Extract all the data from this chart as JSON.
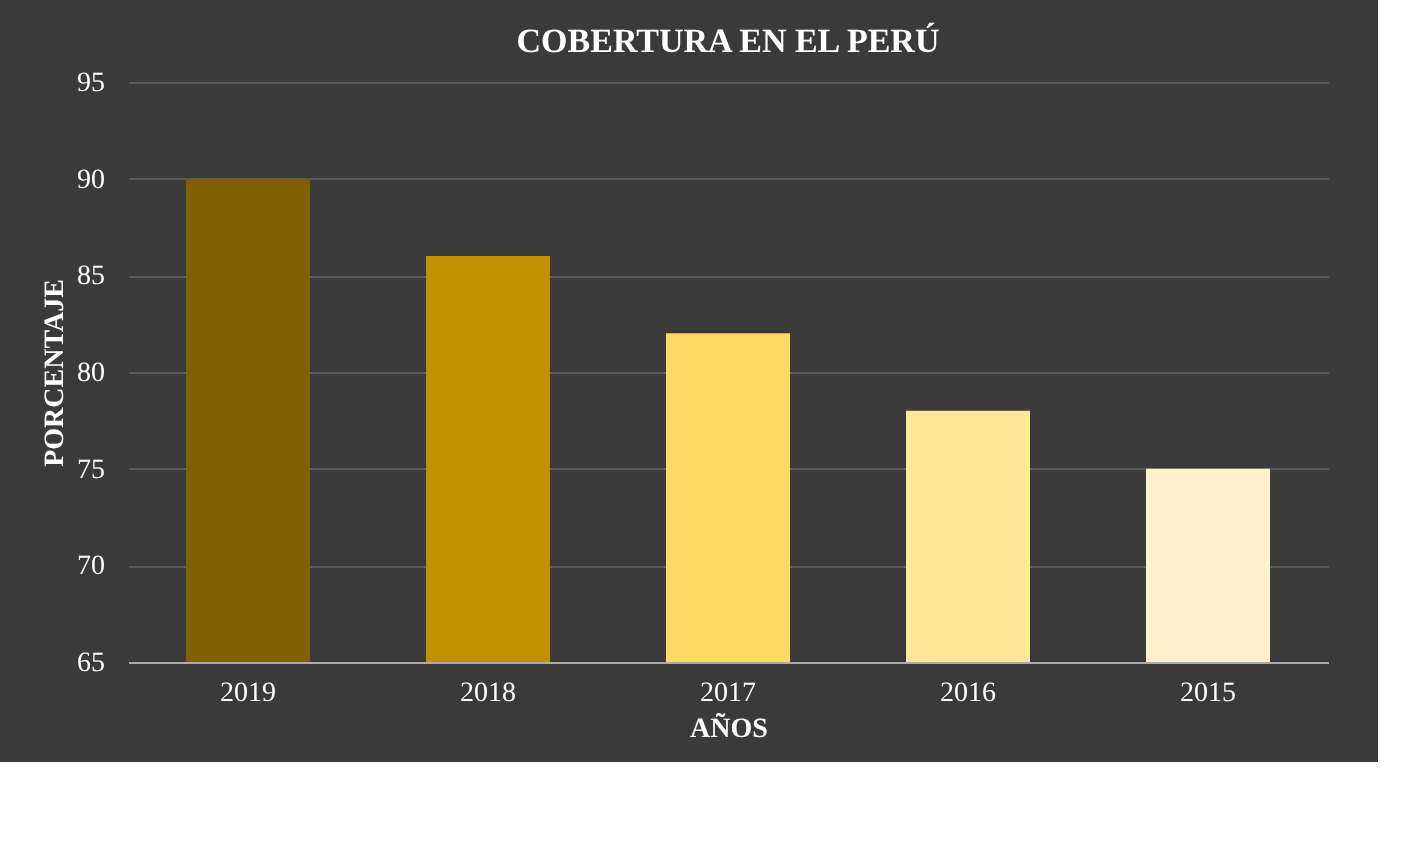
{
  "chart_data": {
    "type": "bar",
    "title": "COBERTURA EN EL PERÚ",
    "xlabel": "AÑOS",
    "ylabel": "PORCENTAJE",
    "categories": [
      "2019",
      "2018",
      "2017",
      "2016",
      "2015"
    ],
    "values": [
      90,
      86,
      82,
      78,
      75
    ],
    "colors": [
      "#7f6000",
      "#bf9000",
      "#ffd966",
      "#ffe699",
      "#fff2cc"
    ],
    "ylim": [
      65,
      95
    ],
    "yticks": [
      65,
      70,
      75,
      80,
      85,
      90,
      95
    ],
    "grid": "y",
    "legend": false
  }
}
